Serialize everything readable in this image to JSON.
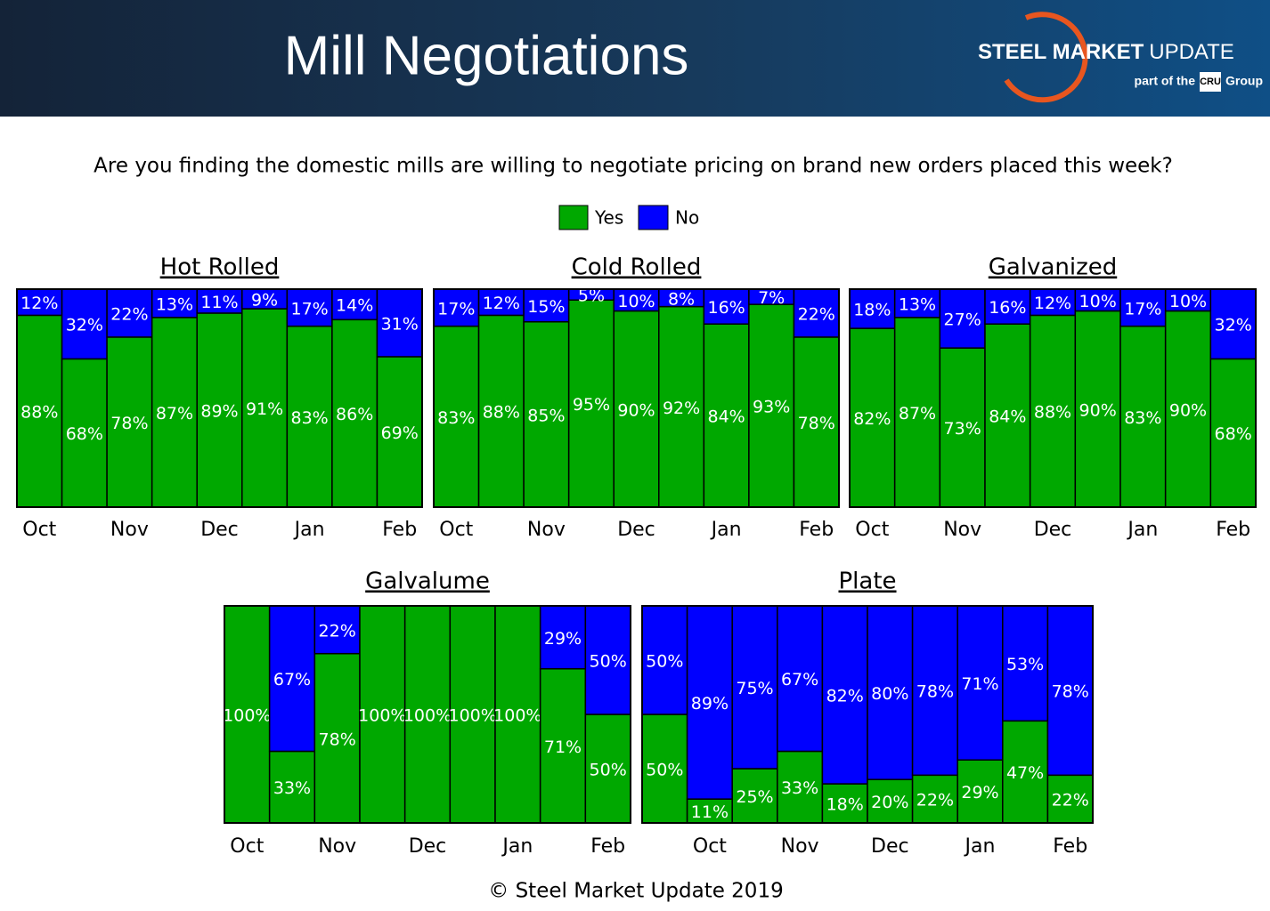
{
  "header": {
    "title": "Mill Negotiations",
    "logo_bold": "STEEL MARKET",
    "logo_light": "UPDATE",
    "tagline_pre": "part of the",
    "tagline_brand": "CRU",
    "tagline_post": "Group"
  },
  "question": "Are you finding the domestic mills are willing to negotiate pricing on brand new orders placed this week?",
  "footer": "© Steel Market Update 2019",
  "chart_data": [
    {
      "type": "stacked-bar",
      "title": "Hot Rolled",
      "ylim": [
        0,
        100
      ],
      "categories": [
        "Oct",
        null,
        "Nov",
        null,
        "Dec",
        null,
        "Jan",
        null,
        "Feb"
      ],
      "series": [
        {
          "name": "Yes",
          "color": "#00a800",
          "values": [
            88,
            68,
            78,
            87,
            89,
            91,
            83,
            86,
            69
          ],
          "value_labels": [
            "88%",
            "68%",
            "78%",
            "87%",
            "89%",
            "91%",
            "83%",
            "86%",
            "69%"
          ]
        },
        {
          "name": "No",
          "color": "#0000ff",
          "values": [
            12,
            32,
            22,
            13,
            11,
            9,
            17,
            14,
            31
          ],
          "value_labels": [
            "12%",
            "32%",
            "22%",
            "13%",
            "11%",
            "9%",
            "17%",
            "14%",
            "31%"
          ]
        }
      ]
    },
    {
      "type": "stacked-bar",
      "title": "Cold Rolled",
      "ylim": [
        0,
        100
      ],
      "categories": [
        "Oct",
        null,
        "Nov",
        null,
        "Dec",
        null,
        "Jan",
        null,
        "Feb"
      ],
      "series": [
        {
          "name": "Yes",
          "color": "#00a800",
          "values": [
            83,
            88,
            85,
            95,
            90,
            92,
            84,
            93,
            78
          ],
          "value_labels": [
            "83%",
            "88%",
            "85%",
            "95%",
            "90%",
            "92%",
            "84%",
            "93%",
            "78%"
          ]
        },
        {
          "name": "No",
          "color": "#0000ff",
          "values": [
            17,
            12,
            15,
            5,
            10,
            8,
            16,
            7,
            22
          ],
          "value_labels": [
            "17%",
            "12%",
            "15%",
            "5%",
            "10%",
            "8%",
            "16%",
            "7%",
            "22%"
          ]
        }
      ]
    },
    {
      "type": "stacked-bar",
      "title": "Galvanized",
      "ylim": [
        0,
        100
      ],
      "categories": [
        "Oct",
        null,
        "Nov",
        null,
        "Dec",
        null,
        "Jan",
        null,
        "Feb"
      ],
      "series": [
        {
          "name": "Yes",
          "color": "#00a800",
          "values": [
            82,
            87,
            73,
            84,
            88,
            90,
            83,
            90,
            68
          ],
          "value_labels": [
            "82%",
            "87%",
            "73%",
            "84%",
            "88%",
            "90%",
            "83%",
            "90%",
            "68%"
          ]
        },
        {
          "name": "No",
          "color": "#0000ff",
          "values": [
            18,
            13,
            27,
            16,
            12,
            10,
            17,
            10,
            32
          ],
          "value_labels": [
            "18%",
            "13%",
            "27%",
            "16%",
            "12%",
            "10%",
            "17%",
            "10%",
            "32%"
          ]
        }
      ]
    },
    {
      "type": "stacked-bar",
      "title": "Galvalume",
      "ylim": [
        0,
        100
      ],
      "categories": [
        "Oct",
        null,
        "Nov",
        null,
        "Dec",
        null,
        "Jan",
        null,
        "Feb"
      ],
      "series": [
        {
          "name": "Yes",
          "color": "#00a800",
          "values": [
            100,
            33,
            78,
            100,
            100,
            100,
            100,
            71,
            50
          ],
          "value_labels": [
            "100%",
            "33%",
            "78%",
            "100%",
            "100%",
            "100%",
            "100%",
            "71%",
            "50%"
          ]
        },
        {
          "name": "No",
          "color": "#0000ff",
          "values": [
            0,
            67,
            22,
            0,
            0,
            0,
            0,
            29,
            50
          ],
          "value_labels": [
            null,
            "67%",
            "22%",
            null,
            null,
            null,
            null,
            "29%",
            "50%"
          ]
        }
      ]
    },
    {
      "type": "stacked-bar",
      "title": "Plate",
      "ylim": [
        0,
        100
      ],
      "categories": [
        null,
        "Oct",
        null,
        "Nov",
        null,
        "Dec",
        null,
        "Jan",
        null,
        "Feb"
      ],
      "series": [
        {
          "name": "Yes",
          "color": "#00a800",
          "values": [
            50,
            11,
            25,
            33,
            18,
            20,
            22,
            29,
            47,
            22
          ],
          "value_labels": [
            "50%",
            "11%",
            "25%",
            "33%",
            "18%",
            "20%",
            "22%",
            "29%",
            "47%",
            "22%"
          ]
        },
        {
          "name": "No",
          "color": "#0000ff",
          "values": [
            50,
            89,
            75,
            67,
            82,
            80,
            78,
            71,
            53,
            78
          ],
          "value_labels": [
            "50%",
            "89%",
            "75%",
            "67%",
            "82%",
            "80%",
            "78%",
            "71%",
            "53%",
            "78%"
          ]
        }
      ]
    }
  ]
}
